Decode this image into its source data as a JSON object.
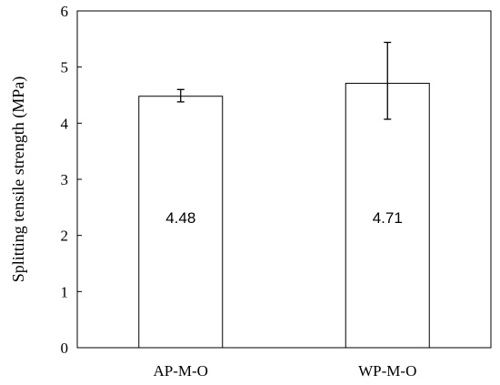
{
  "chart_data": {
    "type": "bar",
    "categories": [
      "AP-M-O",
      "WP-M-O"
    ],
    "values": [
      4.48,
      4.71
    ],
    "error_low": [
      4.38,
      4.07
    ],
    "error_high": [
      4.6,
      5.44
    ],
    "data_labels": [
      "4.48",
      "4.71"
    ],
    "xlabel": "",
    "ylabel": "Splitting tensile strength (MPa)",
    "ylim": [
      0,
      6
    ],
    "yticks": [
      "0",
      "1",
      "2",
      "3",
      "4",
      "5",
      "6"
    ],
    "grid": false,
    "legend": "none",
    "colors": {
      "bar_fill": "#ffffff",
      "bar_stroke": "#000000",
      "axis": "#000000"
    }
  }
}
